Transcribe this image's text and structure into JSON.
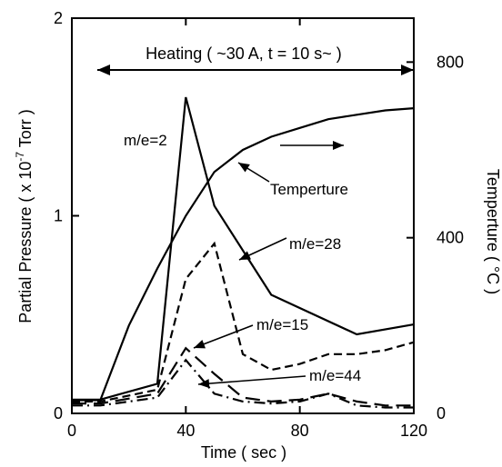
{
  "chart_data": {
    "type": "line",
    "xlabel": "Time ( sec )",
    "ylabel_left": "Partial Pressure ( x 10",
    "ylabel_left_exp": "-7",
    "ylabel_left_unit": " Torr )",
    "ylabel_right": "Temperture  ( °C )",
    "xlim": [
      0,
      120
    ],
    "ylim_left": [
      0,
      2
    ],
    "ylim_right": [
      0,
      900
    ],
    "x_ticks": [
      "0",
      "40",
      "80",
      "120"
    ],
    "x_tick_values": [
      0,
      40,
      80,
      120
    ],
    "y_left_ticks": [
      "0",
      "1",
      "2"
    ],
    "y_left_tick_values": [
      0,
      1,
      2
    ],
    "y_right_ticks": [
      "0",
      "400",
      "800"
    ],
    "y_right_tick_values": [
      0,
      400,
      800
    ],
    "grid": false,
    "heating_label": "Heating ( ~30 A, t = 10 s~ )",
    "heating_range": [
      0,
      120
    ],
    "series": [
      {
        "name": "m/e=2",
        "axis": "left",
        "style": "solid",
        "x": [
          0,
          10,
          30,
          40,
          50,
          70,
          100,
          120
        ],
        "y": [
          0.07,
          0.07,
          0.15,
          1.6,
          1.05,
          0.6,
          0.4,
          0.45
        ]
      },
      {
        "name": "Temperture",
        "axis": "right",
        "style": "solid",
        "x": [
          0,
          10,
          20,
          30,
          40,
          50,
          60,
          70,
          80,
          90,
          100,
          110,
          120
        ],
        "y": [
          30,
          30,
          200,
          330,
          450,
          550,
          600,
          630,
          650,
          670,
          680,
          690,
          695
        ]
      },
      {
        "name": "m/e=28",
        "axis": "left",
        "style": "dashed",
        "x": [
          0,
          10,
          30,
          40,
          50,
          60,
          70,
          80,
          90,
          100,
          110,
          120
        ],
        "y": [
          0.06,
          0.06,
          0.12,
          0.68,
          0.86,
          0.3,
          0.22,
          0.25,
          0.3,
          0.3,
          0.32,
          0.36
        ]
      },
      {
        "name": "m/e=15",
        "axis": "left",
        "style": "longdash",
        "x": [
          0,
          10,
          30,
          40,
          50,
          60,
          70,
          80,
          90,
          100,
          110,
          120
        ],
        "y": [
          0.05,
          0.05,
          0.1,
          0.33,
          0.2,
          0.08,
          0.06,
          0.07,
          0.1,
          0.06,
          0.04,
          0.04
        ]
      },
      {
        "name": "m/e=44",
        "axis": "left",
        "style": "dashdot",
        "x": [
          0,
          10,
          30,
          40,
          50,
          60,
          70,
          80,
          90,
          100,
          110,
          120
        ],
        "y": [
          0.04,
          0.04,
          0.08,
          0.27,
          0.1,
          0.06,
          0.05,
          0.06,
          0.1,
          0.04,
          0.03,
          0.03
        ]
      }
    ],
    "annotations": {
      "me2": "m/e=2",
      "temp": "Temperture",
      "me28": "m/e=28",
      "me15": "m/e=15",
      "me44": "m/e=44"
    }
  }
}
